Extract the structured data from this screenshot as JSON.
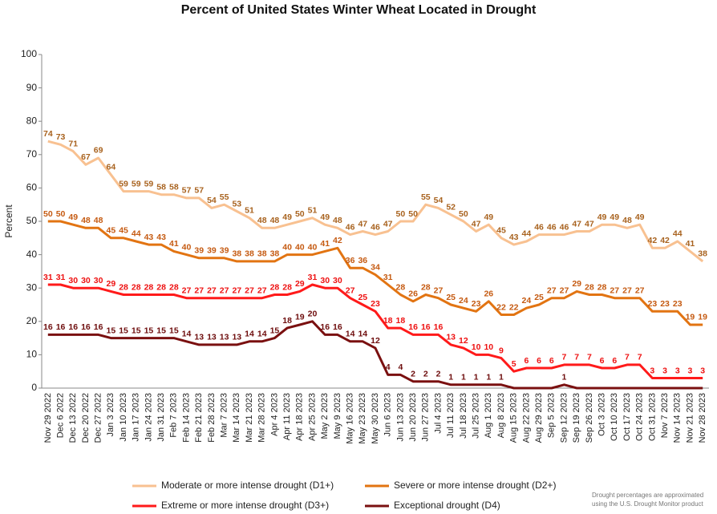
{
  "chart_data": {
    "type": "line",
    "title": "Percent of United States Winter Wheat Located in Drought",
    "y_label": "Percent",
    "note": [
      "Drought percentages are approximated",
      "using the U.S. Drought Monitor product"
    ],
    "categories": [
      "Nov 29 2022",
      "Dec 6 2022",
      "Dec 13 2022",
      "Dec 20 2022",
      "Dec 27 2022",
      "Jan 3 2023",
      "Jan 10 2023",
      "Jan 17 2023",
      "Jan 24 2023",
      "Jan 31 2023",
      "Feb 7 2023",
      "Feb 14 2023",
      "Feb 21 2023",
      "Feb 28 2023",
      "Mar 7 2023",
      "Mar 14 2023",
      "Mar 21 2023",
      "Mar 28 2023",
      "Apr 4 2023",
      "Apr 11 2023",
      "Apr 18 2023",
      "Apr 25 2023",
      "May 2 2023",
      "May 9 2023",
      "May 16 2023",
      "May 23 2023",
      "May 30 2023",
      "Jun 6 2023",
      "Jun 13 2023",
      "Jun 20 2023",
      "Jun 27 2023",
      "Jul 4 2023",
      "Jul 11 2023",
      "Jul 18 2023",
      "Jul 25 2023",
      "Aug 1 2023",
      "Aug 8 2023",
      "Aug 15 2023",
      "Aug 22 2023",
      "Aug 29 2023",
      "Sep 5 2023",
      "Sep 12 2023",
      "Sep 19 2023",
      "Sep 26 2023",
      "Oct 3 2023",
      "Oct 10 2023",
      "Oct 17 2023",
      "Oct 24 2023",
      "Oct 31 2023",
      "Nov 7 2023",
      "Nov 14 2023",
      "Nov 21 2023",
      "Nov 28 2023"
    ],
    "series": [
      {
        "name": "Moderate or more intense drought (D1+)",
        "color": "#f8c191",
        "label_color": "#a8621e",
        "values": [
          74,
          73,
          71,
          67,
          69,
          64,
          59,
          59,
          59,
          58,
          58,
          57,
          57,
          54,
          55,
          53,
          51,
          48,
          48,
          49,
          50,
          51,
          49,
          48,
          46,
          47,
          46,
          47,
          50,
          50,
          55,
          54,
          52,
          50,
          47,
          49,
          45,
          43,
          44,
          46,
          46,
          46,
          47,
          47,
          49,
          49,
          48,
          49,
          42,
          42,
          44,
          41,
          38
        ]
      },
      {
        "name": "Severe or more intense drought (D2+)",
        "color": "#e27412",
        "label_color": "#c55a11",
        "values": [
          50,
          50,
          49,
          48,
          48,
          45,
          45,
          44,
          43,
          43,
          41,
          40,
          39,
          39,
          39,
          38,
          38,
          38,
          38,
          40,
          40,
          40,
          41,
          42,
          36,
          36,
          34,
          31,
          28,
          26,
          28,
          27,
          25,
          24,
          23,
          26,
          22,
          22,
          24,
          25,
          27,
          27,
          29,
          28,
          28,
          27,
          27,
          27,
          23,
          23,
          23,
          19,
          19
        ]
      },
      {
        "name": "Extreme or more intense drought (D3+)",
        "color": "#ff1a1a",
        "label_color": "#ee1111",
        "values": [
          31,
          31,
          30,
          30,
          30,
          29,
          28,
          28,
          28,
          28,
          28,
          27,
          27,
          27,
          27,
          27,
          27,
          27,
          28,
          28,
          29,
          31,
          30,
          30,
          27,
          25,
          23,
          18,
          18,
          16,
          16,
          16,
          13,
          12,
          10,
          10,
          9,
          5,
          6,
          6,
          6,
          7,
          7,
          7,
          6,
          6,
          7,
          7,
          3,
          3,
          3,
          3,
          3
        ]
      },
      {
        "name": "Exceptional drought (D4)",
        "color": "#7a1010",
        "label_color": "#6e0d0d",
        "values": [
          16,
          16,
          16,
          16,
          16,
          15,
          15,
          15,
          15,
          15,
          15,
          14,
          13,
          13,
          13,
          13,
          14,
          14,
          15,
          18,
          19,
          20,
          16,
          16,
          14,
          14,
          12,
          4,
          4,
          2,
          2,
          2,
          1,
          1,
          1,
          1,
          1,
          0,
          0,
          0,
          0,
          1,
          0,
          0,
          0,
          0,
          0,
          0,
          0,
          0,
          0,
          0,
          0
        ]
      }
    ],
    "ylim": [
      0,
      100
    ],
    "yticks": [
      0,
      10,
      20,
      30,
      40,
      50,
      60,
      70,
      80,
      90,
      100
    ],
    "grid": false
  }
}
